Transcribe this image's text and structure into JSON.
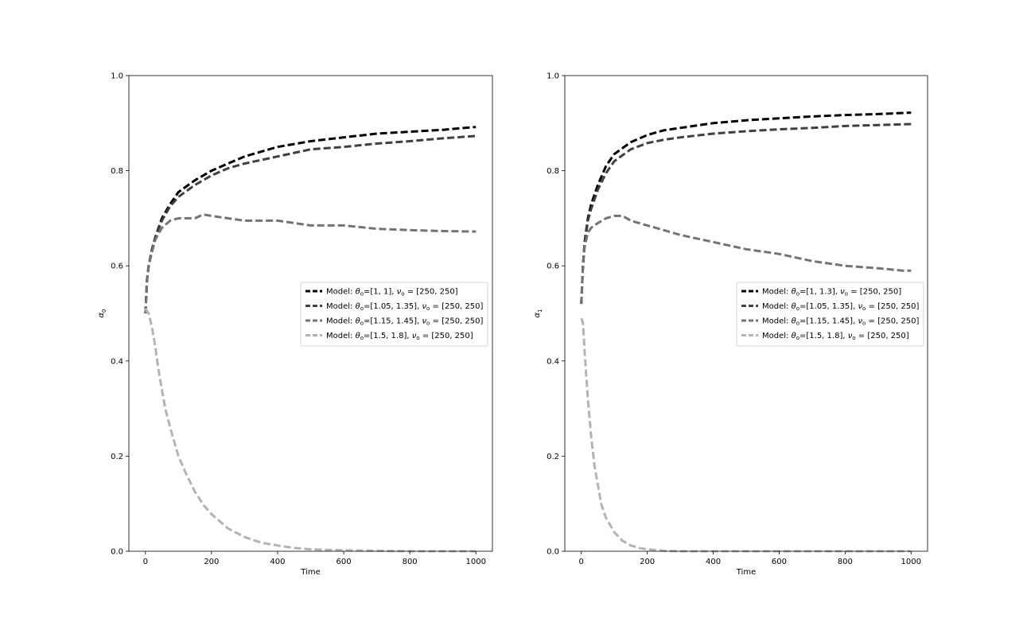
{
  "chart_data": [
    {
      "type": "line",
      "xlabel": "Time",
      "ylabel_base": "α",
      "ylabel_sub": "0",
      "xlim": [
        -50,
        1050
      ],
      "ylim": [
        0,
        1.0
      ],
      "xticks": [
        0,
        200,
        400,
        600,
        800,
        1000
      ],
      "yticks": [
        0.0,
        0.2,
        0.4,
        0.6,
        0.8,
        1.0
      ],
      "ytick_labels": [
        "0.0",
        "0.2",
        "0.4",
        "0.6",
        "0.8",
        "1.0"
      ],
      "legend_position": "center-right",
      "series": [
        {
          "name": "Model: θo=[1, 1], νo = [250, 250]",
          "legend": {
            "pre": "Model: ",
            "theta": "θ",
            "eq1": "=[1, 1], ",
            "nu": "ν",
            "eq2": " = [250, 250]"
          },
          "color": "#000000",
          "x": [
            0,
            5,
            10,
            20,
            30,
            50,
            75,
            100,
            150,
            200,
            250,
            300,
            400,
            500,
            600,
            700,
            800,
            900,
            1000
          ],
          "y": [
            0.5,
            0.57,
            0.6,
            0.635,
            0.66,
            0.7,
            0.73,
            0.755,
            0.78,
            0.8,
            0.815,
            0.83,
            0.85,
            0.862,
            0.87,
            0.878,
            0.882,
            0.886,
            0.892
          ]
        },
        {
          "name": "Model: θo=[1.05, 1.35], νo = [250, 250]",
          "legend": {
            "pre": "Model: ",
            "theta": "θ",
            "eq1": "=[1.05, 1.35], ",
            "nu": "ν",
            "eq2": " = [250, 250]"
          },
          "color": "#404040",
          "x": [
            0,
            5,
            10,
            20,
            30,
            50,
            75,
            100,
            150,
            200,
            250,
            300,
            400,
            500,
            600,
            700,
            800,
            900,
            1000
          ],
          "y": [
            0.5,
            0.57,
            0.6,
            0.635,
            0.66,
            0.695,
            0.725,
            0.745,
            0.77,
            0.79,
            0.805,
            0.815,
            0.83,
            0.845,
            0.85,
            0.857,
            0.862,
            0.868,
            0.873
          ]
        },
        {
          "name": "Model: θo=[1.15, 1.45], νo = [250, 250]",
          "legend": {
            "pre": "Model: ",
            "theta": "θ",
            "eq1": "=[1.15, 1.45], ",
            "nu": "ν",
            "eq2": " = [250, 250]"
          },
          "color": "#737373",
          "x": [
            0,
            5,
            10,
            20,
            30,
            50,
            75,
            100,
            150,
            175,
            200,
            250,
            300,
            400,
            500,
            600,
            700,
            800,
            900,
            1000
          ],
          "y": [
            0.5,
            0.57,
            0.6,
            0.63,
            0.655,
            0.68,
            0.695,
            0.7,
            0.7,
            0.708,
            0.705,
            0.7,
            0.695,
            0.695,
            0.685,
            0.685,
            0.678,
            0.675,
            0.673,
            0.672
          ]
        },
        {
          "name": "Model: θo=[1.5, 1.8], νo = [250, 250]",
          "legend": {
            "pre": "Model: ",
            "theta": "θ",
            "eq1": "=[1.5, 1.8], ",
            "nu": "ν",
            "eq2": " = [250, 250]"
          },
          "color": "#b3b3b3",
          "x": [
            0,
            10,
            20,
            30,
            40,
            50,
            60,
            75,
            100,
            125,
            150,
            175,
            200,
            250,
            300,
            350,
            400,
            450,
            500,
            600,
            700,
            800,
            900,
            1000
          ],
          "y": [
            0.51,
            0.5,
            0.47,
            0.43,
            0.38,
            0.34,
            0.3,
            0.26,
            0.2,
            0.16,
            0.125,
            0.098,
            0.078,
            0.048,
            0.03,
            0.018,
            0.012,
            0.007,
            0.004,
            0.002,
            0.001,
            0.0,
            0.0,
            0.0
          ]
        }
      ]
    },
    {
      "type": "line",
      "xlabel": "Time",
      "ylabel_base": "α",
      "ylabel_sub": "1",
      "xlim": [
        -50,
        1050
      ],
      "ylim": [
        0,
        1.0
      ],
      "xticks": [
        0,
        200,
        400,
        600,
        800,
        1000
      ],
      "yticks": [
        0.0,
        0.2,
        0.4,
        0.6,
        0.8,
        1.0
      ],
      "ytick_labels": [
        "0.0",
        "0.2",
        "0.4",
        "0.6",
        "0.8",
        "1.0"
      ],
      "legend_position": "center-right",
      "series": [
        {
          "name": "Model: θo=[1, 1.3], νo = [250, 250]",
          "legend": {
            "pre": "Model: ",
            "theta": "θ",
            "eq1": "=[1, 1.3], ",
            "nu": "ν",
            "eq2": " = [250, 250]"
          },
          "color": "#000000",
          "x": [
            0,
            5,
            10,
            20,
            30,
            50,
            75,
            100,
            150,
            200,
            250,
            300,
            400,
            500,
            600,
            700,
            800,
            900,
            1000
          ],
          "y": [
            0.52,
            0.6,
            0.65,
            0.7,
            0.73,
            0.77,
            0.81,
            0.835,
            0.86,
            0.875,
            0.885,
            0.89,
            0.9,
            0.906,
            0.91,
            0.914,
            0.917,
            0.919,
            0.922
          ]
        },
        {
          "name": "Model: θo=[1.05, 1.35], νo = [250, 250]",
          "legend": {
            "pre": "Model: ",
            "theta": "θ",
            "eq1": "=[1.05, 1.35], ",
            "nu": "ν",
            "eq2": " = [250, 250]"
          },
          "color": "#404040",
          "x": [
            0,
            5,
            10,
            20,
            30,
            50,
            75,
            100,
            150,
            200,
            250,
            300,
            400,
            500,
            600,
            700,
            800,
            900,
            1000
          ],
          "y": [
            0.52,
            0.6,
            0.645,
            0.695,
            0.72,
            0.76,
            0.795,
            0.82,
            0.845,
            0.858,
            0.865,
            0.87,
            0.878,
            0.883,
            0.887,
            0.89,
            0.894,
            0.896,
            0.898
          ]
        },
        {
          "name": "Model: θo=[1.15, 1.45], νo = [250, 250]",
          "legend": {
            "pre": "Model: ",
            "theta": "θ",
            "eq1": "=[1.15, 1.45], ",
            "nu": "ν",
            "eq2": " = [250, 250]"
          },
          "color": "#737373",
          "x": [
            0,
            5,
            10,
            20,
            30,
            50,
            75,
            100,
            125,
            150,
            200,
            250,
            300,
            400,
            500,
            600,
            700,
            800,
            900,
            975,
            1000
          ],
          "y": [
            0.52,
            0.6,
            0.64,
            0.67,
            0.68,
            0.69,
            0.7,
            0.705,
            0.705,
            0.695,
            0.685,
            0.675,
            0.665,
            0.65,
            0.635,
            0.625,
            0.61,
            0.6,
            0.595,
            0.59,
            0.59
          ]
        },
        {
          "name": "Model: θo=[1.5, 1.8], νo = [250, 250]",
          "legend": {
            "pre": "Model: ",
            "theta": "θ",
            "eq1": "=[1.5, 1.8], ",
            "nu": "ν",
            "eq2": " = [250, 250]"
          },
          "color": "#b3b3b3",
          "x": [
            0,
            5,
            10,
            15,
            20,
            25,
            30,
            40,
            50,
            60,
            75,
            100,
            125,
            150,
            175,
            200,
            250,
            300,
            400,
            500,
            600,
            800,
            1000
          ],
          "y": [
            0.49,
            0.48,
            0.42,
            0.37,
            0.32,
            0.28,
            0.24,
            0.18,
            0.14,
            0.1,
            0.07,
            0.04,
            0.022,
            0.012,
            0.007,
            0.004,
            0.001,
            0.0,
            0.0,
            0.0,
            0.0,
            0.0,
            0.0
          ]
        }
      ]
    }
  ]
}
